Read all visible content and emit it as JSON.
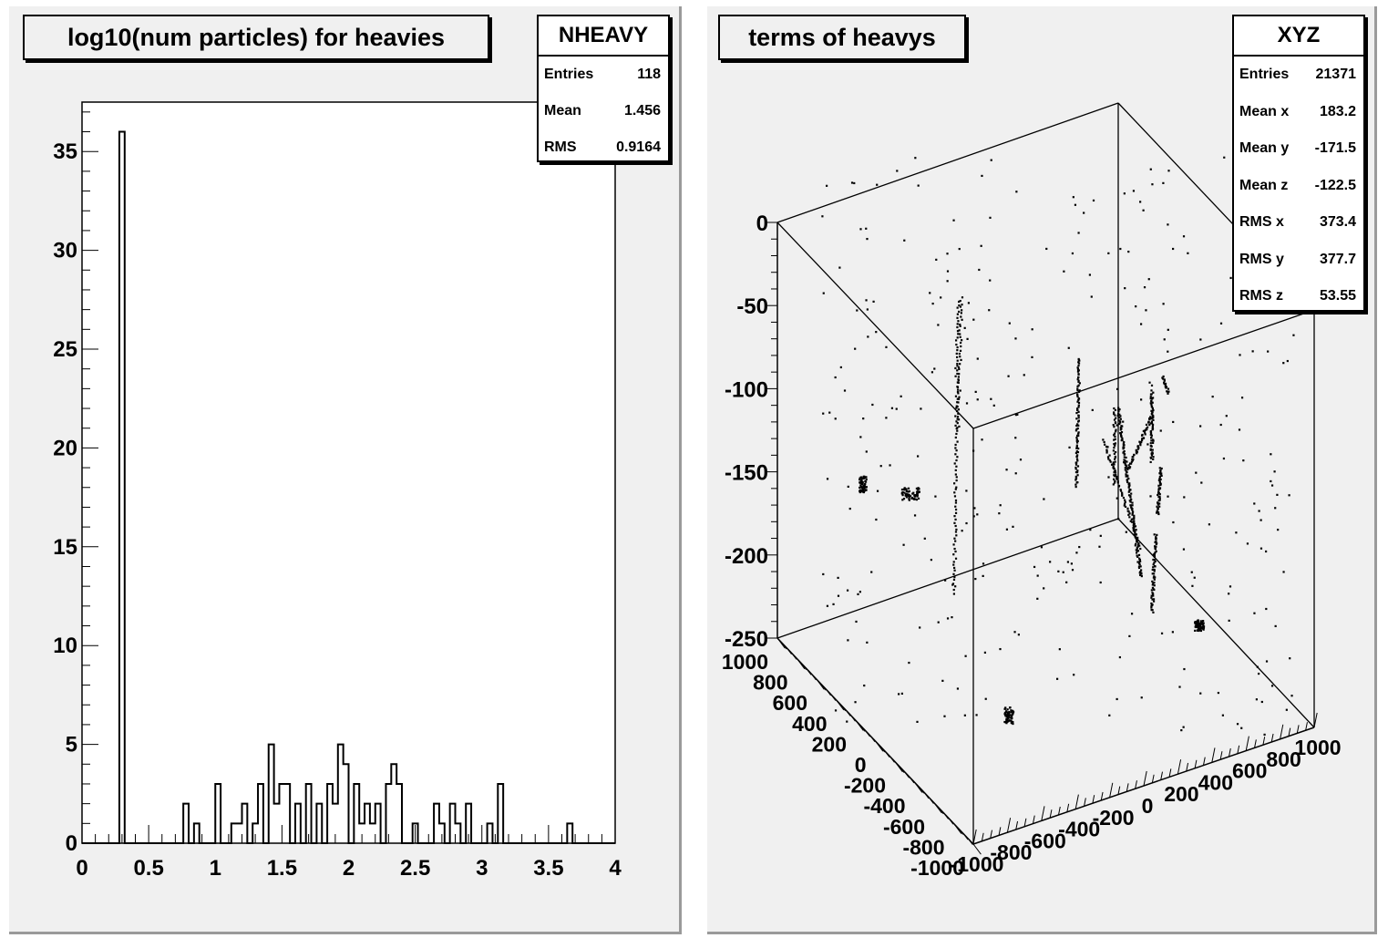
{
  "chart_data": [
    {
      "type": "bar",
      "title": "log10(num particles) for heavies",
      "xlabel": "",
      "ylabel": "",
      "xlim": [
        0,
        4
      ],
      "ylim": [
        0,
        37.5
      ],
      "bin_width": 0.04,
      "x_ticks": [
        "0",
        "0.5",
        "1",
        "1.5",
        "2",
        "2.5",
        "3",
        "3.5",
        "4"
      ],
      "y_ticks": [
        "0",
        "5",
        "10",
        "15",
        "20",
        "25",
        "30",
        "35"
      ],
      "bins": [
        {
          "x": 0.28,
          "y": 36
        },
        {
          "x": 0.76,
          "y": 2
        },
        {
          "x": 0.84,
          "y": 1
        },
        {
          "x": 1.0,
          "y": 3
        },
        {
          "x": 1.12,
          "y": 1
        },
        {
          "x": 1.16,
          "y": 1
        },
        {
          "x": 1.2,
          "y": 2
        },
        {
          "x": 1.28,
          "y": 1
        },
        {
          "x": 1.32,
          "y": 3
        },
        {
          "x": 1.4,
          "y": 5
        },
        {
          "x": 1.44,
          "y": 2
        },
        {
          "x": 1.48,
          "y": 3
        },
        {
          "x": 1.52,
          "y": 3
        },
        {
          "x": 1.6,
          "y": 2
        },
        {
          "x": 1.68,
          "y": 3
        },
        {
          "x": 1.76,
          "y": 2
        },
        {
          "x": 1.84,
          "y": 3
        },
        {
          "x": 1.88,
          "y": 2
        },
        {
          "x": 1.92,
          "y": 5
        },
        {
          "x": 1.96,
          "y": 4
        },
        {
          "x": 2.04,
          "y": 3
        },
        {
          "x": 2.08,
          "y": 1
        },
        {
          "x": 2.12,
          "y": 2
        },
        {
          "x": 2.16,
          "y": 1
        },
        {
          "x": 2.2,
          "y": 2
        },
        {
          "x": 2.28,
          "y": 3
        },
        {
          "x": 2.32,
          "y": 4
        },
        {
          "x": 2.36,
          "y": 3
        },
        {
          "x": 2.48,
          "y": 1
        },
        {
          "x": 2.64,
          "y": 2
        },
        {
          "x": 2.68,
          "y": 1
        },
        {
          "x": 2.76,
          "y": 2
        },
        {
          "x": 2.8,
          "y": 1
        },
        {
          "x": 2.88,
          "y": 2
        },
        {
          "x": 3.04,
          "y": 1
        },
        {
          "x": 3.12,
          "y": 3
        },
        {
          "x": 3.64,
          "y": 1
        }
      ],
      "stats": {
        "name": "NHEAVY",
        "rows": [
          {
            "label": "Entries",
            "value": "118"
          },
          {
            "label": "Mean",
            "value": "1.456"
          },
          {
            "label": "RMS",
            "value": "0.9164"
          }
        ]
      }
    },
    {
      "type": "scatter",
      "title": "terms of heavys",
      "zlim": [
        -250,
        0
      ],
      "z_ticks": [
        "0",
        "-50",
        "-100",
        "-150",
        "-200",
        "-250"
      ],
      "xlim": [
        -1000,
        1000
      ],
      "ylim": [
        -1000,
        1000
      ],
      "y_ticks": [
        "1000",
        "800",
        "600",
        "400",
        "200",
        "0",
        "-200",
        "-400",
        "-600",
        "-800",
        "-1000"
      ],
      "x_ticks": [
        "-1000",
        "-800",
        "-600",
        "-400",
        "-200",
        "0",
        "200",
        "400",
        "600",
        "800",
        "1000"
      ],
      "stats": {
        "name": "XYZ",
        "rows": [
          {
            "label": "Entries",
            "value": "21371"
          },
          {
            "label": "Mean x",
            "value": "183.2"
          },
          {
            "label": "Mean y",
            "value": "-171.5"
          },
          {
            "label": "Mean z",
            "value": "-122.5"
          },
          {
            "label": "RMS x",
            "value": "373.4"
          },
          {
            "label": "RMS y",
            "value": "377.7"
          },
          {
            "label": "RMS z",
            "value": "53.55"
          }
        ]
      }
    }
  ]
}
